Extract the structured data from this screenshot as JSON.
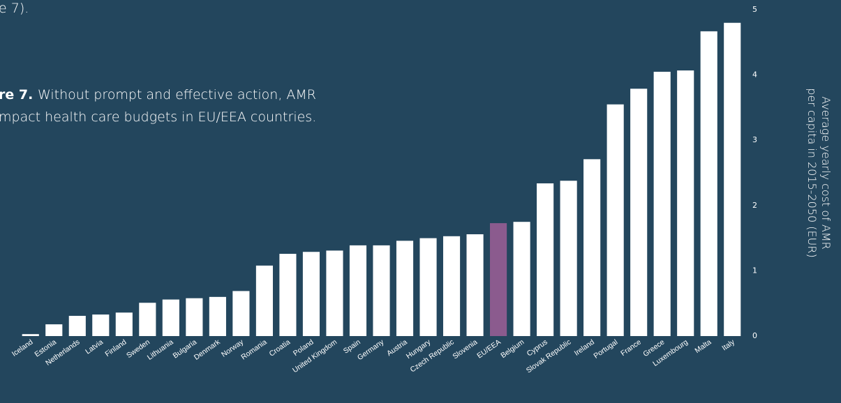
{
  "page": {
    "fragment": "e 7).",
    "title_lead": "re 7.",
    "title_lines": [
      "Without prompt and effective action, AMR",
      "mpact health care budgets in EU/EEA countries."
    ]
  },
  "chart_data": {
    "type": "bar",
    "ylabel": [
      "Average yearly cost of AMR",
      "per capita in 2015-2050 (EUR)"
    ],
    "categories": [
      "Iceland",
      "Estonia",
      "Netherlands",
      "Latvia",
      "Finland",
      "Sweden",
      "Lithuania",
      "Bulgaria",
      "Denmark",
      "Norway",
      "Romania",
      "Croatia",
      "Poland",
      "United Kingdom",
      "Spain",
      "Germany",
      "Austria",
      "Hungary",
      "Czech Republic",
      "Slovenia",
      "EU/EEA",
      "Belgium",
      "Cyprus",
      "Slovak Republic",
      "Ireland",
      "Portugal",
      "France",
      "Greece",
      "Luxembourg",
      "Malta",
      "Italy"
    ],
    "values": [
      0.03,
      0.18,
      0.31,
      0.33,
      0.36,
      0.51,
      0.56,
      0.58,
      0.6,
      0.69,
      1.08,
      1.26,
      1.29,
      1.31,
      1.39,
      1.39,
      1.46,
      1.5,
      1.53,
      1.56,
      1.73,
      1.75,
      2.34,
      2.38,
      2.71,
      3.55,
      3.79,
      4.05,
      4.07,
      4.67,
      4.8
    ],
    "colors": [
      "#ffffff",
      "#ffffff",
      "#ffffff",
      "#ffffff",
      "#ffffff",
      "#ffffff",
      "#ffffff",
      "#ffffff",
      "#ffffff",
      "#ffffff",
      "#ffffff",
      "#ffffff",
      "#ffffff",
      "#ffffff",
      "#ffffff",
      "#ffffff",
      "#ffffff",
      "#ffffff",
      "#ffffff",
      "#ffffff",
      "#8b5b8e",
      "#ffffff",
      "#ffffff",
      "#ffffff",
      "#ffffff",
      "#ffffff",
      "#ffffff",
      "#ffffff",
      "#ffffff",
      "#ffffff",
      "#ffffff"
    ],
    "ylim": [
      0,
      5
    ],
    "yticks": [
      0,
      1,
      2,
      3,
      4,
      5
    ],
    "y_axis_side": "right"
  }
}
